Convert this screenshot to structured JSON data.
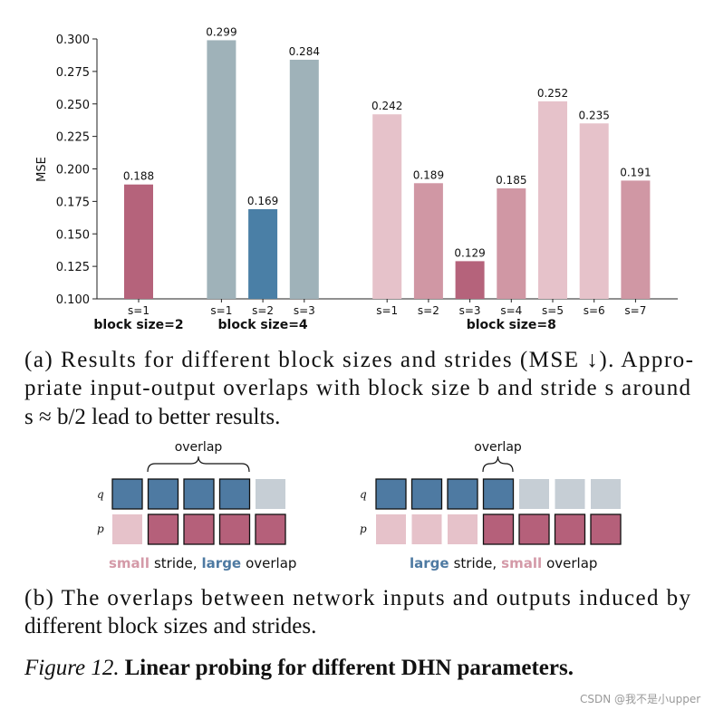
{
  "chart_data": {
    "type": "bar",
    "ylabel": "MSE",
    "ylim": [
      0.1,
      0.3
    ],
    "yticks": [
      {
        "value": 0.1,
        "label": "0.100"
      },
      0.125,
      {
        "value": 0.15,
        "label": "0.150"
      },
      0.175,
      {
        "value": 0.2,
        "label": "0.200"
      },
      0.225,
      {
        "value": 0.25,
        "label": "0.250"
      },
      0.275,
      {
        "value": 0.3,
        "label": "0.300"
      }
    ],
    "groups": [
      {
        "label": "block size=2",
        "categories": [
          "s=1"
        ],
        "values": [
          0.188
        ],
        "colors": [
          "#b5637b"
        ]
      },
      {
        "label": "block size=4",
        "categories": [
          "s=1",
          "s=2",
          "s=3"
        ],
        "values": [
          0.299,
          0.169,
          0.284
        ],
        "colors": [
          "#9fb2b9",
          "#4a7fa6",
          "#9fb2b9"
        ]
      },
      {
        "label": "block size=8",
        "categories": [
          "s=1",
          "s=2",
          "s=3",
          "s=4",
          "s=5",
          "s=6",
          "s=7"
        ],
        "values": [
          0.242,
          0.189,
          0.129,
          0.185,
          0.252,
          0.235,
          0.191
        ],
        "colors": [
          "#e6c2ca",
          "#d097a4",
          "#b5637b",
          "#d097a4",
          "#e6c2ca",
          "#e6c2ca",
          "#d097a4"
        ]
      }
    ]
  },
  "caption_a": {
    "lines": [
      "(a) Results for different block sizes and strides (MSE ↓). Appro-",
      "priate input-output overlaps with block size b and stride s around",
      "s ≈ b/2 lead to better results."
    ]
  },
  "diagram": {
    "panels": [
      {
        "overlap_label": "overlap",
        "q_label": "q",
        "p_label": "p",
        "q_colors": [
          "#4e7aa2",
          "#4e7aa2",
          "#4e7aa2",
          "#4e7aa2",
          "#c6ced5"
        ],
        "p_colors": [
          "#e6c2ca",
          "#b5607a",
          "#b5607a",
          "#b5607a",
          "#b5607a"
        ],
        "caption": [
          {
            "text": "small",
            "color": "#d49aa8",
            "bold": true
          },
          {
            "text": "stride,"
          },
          {
            "text": "large",
            "color": "#4e7aa2",
            "bold": true
          },
          {
            "text": "overlap"
          }
        ]
      },
      {
        "overlap_label": "overlap",
        "q_label": "q",
        "p_label": "p",
        "q_colors": [
          "#4e7aa2",
          "#4e7aa2",
          "#4e7aa2",
          "#4e7aa2",
          "#c6ced5",
          "#c6ced5",
          "#c6ced5"
        ],
        "p_colors": [
          "#e6c2ca",
          "#e6c2ca",
          "#e6c2ca",
          "#b5607a",
          "#b5607a",
          "#b5607a",
          "#b5607a"
        ],
        "caption": [
          {
            "text": "large",
            "color": "#4e7aa2",
            "bold": true
          },
          {
            "text": "stride,"
          },
          {
            "text": "small",
            "color": "#d49aa8",
            "bold": true
          },
          {
            "text": "overlap"
          }
        ]
      }
    ]
  },
  "caption_b": {
    "lines": [
      "(b) The overlaps between network inputs and outputs induced by",
      "different block sizes and strides."
    ]
  },
  "figure_caption": {
    "label": "Figure 12.",
    "text": "Linear probing for different DHN parameters."
  },
  "watermark": "CSDN @我不是小upper"
}
